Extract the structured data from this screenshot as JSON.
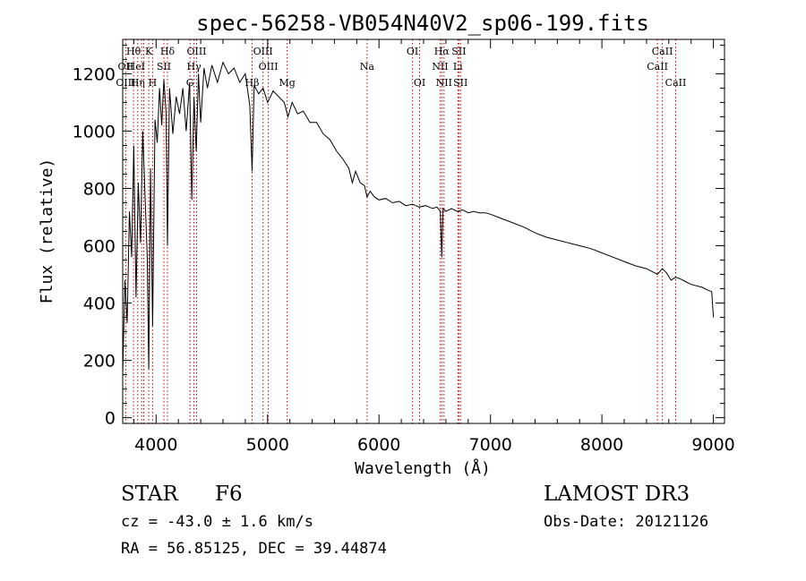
{
  "chart_data": {
    "type": "line",
    "title": "spec-56258-VB054N40V2_sp06-199.fits",
    "xlabel": "Wavelength (Å)",
    "ylabel": "Flux (relative)",
    "xlim": [
      3700,
      9100
    ],
    "ylim": [
      -20,
      1320
    ],
    "x_ticks": [
      4000,
      5000,
      6000,
      7000,
      8000,
      9000
    ],
    "y_ticks": [
      0,
      200,
      400,
      600,
      800,
      1000,
      1200
    ],
    "grid": false,
    "series": [
      {
        "name": "flux",
        "x": [
          3700,
          3720,
          3740,
          3760,
          3780,
          3800,
          3820,
          3840,
          3860,
          3880,
          3900,
          3920,
          3934,
          3950,
          3968,
          3990,
          4010,
          4030,
          4050,
          4070,
          4090,
          4102,
          4120,
          4150,
          4180,
          4210,
          4240,
          4270,
          4300,
          4320,
          4340,
          4360,
          4380,
          4400,
          4430,
          4460,
          4500,
          4550,
          4600,
          4650,
          4700,
          4750,
          4800,
          4840,
          4861,
          4880,
          4920,
          4960,
          5000,
          5050,
          5100,
          5150,
          5183,
          5220,
          5270,
          5320,
          5380,
          5440,
          5500,
          5560,
          5620,
          5680,
          5730,
          5760,
          5790,
          5830,
          5870,
          5893,
          5920,
          5960,
          6000,
          6060,
          6120,
          6180,
          6240,
          6300,
          6360,
          6420,
          6480,
          6520,
          6550,
          6563,
          6575,
          6600,
          6650,
          6700,
          6750,
          6800,
          6850,
          6900,
          6950,
          7000,
          7100,
          7200,
          7300,
          7400,
          7500,
          7600,
          7700,
          7800,
          7900,
          8000,
          8100,
          8200,
          8300,
          8400,
          8498,
          8542,
          8580,
          8620,
          8662,
          8700,
          8750,
          8800,
          8850,
          8900,
          8950,
          8985,
          9000
        ],
        "values": [
          150,
          480,
          330,
          720,
          560,
          950,
          420,
          820,
          610,
          1000,
          780,
          560,
          170,
          870,
          320,
          1040,
          960,
          1150,
          1020,
          1180,
          1060,
          600,
          1150,
          990,
          1120,
          1060,
          1150,
          1000,
          1170,
          760,
          1120,
          930,
          1200,
          1030,
          1220,
          1150,
          1230,
          1170,
          1240,
          1200,
          1220,
          1170,
          1200,
          1090,
          860,
          1160,
          1130,
          1150,
          1100,
          1140,
          1120,
          1100,
          1050,
          1100,
          1060,
          1070,
          1030,
          1030,
          990,
          970,
          930,
          900,
          870,
          820,
          860,
          820,
          810,
          770,
          790,
          770,
          760,
          765,
          750,
          755,
          740,
          745,
          735,
          740,
          730,
          735,
          720,
          560,
          730,
          720,
          730,
          720,
          725,
          715,
          720,
          715,
          715,
          710,
          695,
          680,
          665,
          645,
          630,
          620,
          610,
          600,
          590,
          575,
          560,
          545,
          530,
          520,
          500,
          520,
          505,
          480,
          490,
          485,
          475,
          465,
          460,
          455,
          445,
          440,
          350
        ]
      }
    ],
    "annotations": [
      {
        "label": "Hθ",
        "x": 3797,
        "row": 0
      },
      {
        "label": "OII",
        "x": 3727,
        "row": 1
      },
      {
        "label": "OIII",
        "x": 3727,
        "row": 2
      },
      {
        "label": "HeI",
        "x": 3820,
        "row": 1
      },
      {
        "label": "Hη",
        "x": 3835,
        "row": 2
      },
      {
        "label": "K",
        "x": 3934,
        "row": 0
      },
      {
        "label": "SII",
        "x": 4070,
        "row": 1
      },
      {
        "label": "H",
        "x": 3968,
        "row": 2
      },
      {
        "label": "Hδ",
        "x": 4102,
        "row": 0
      },
      {
        "label": "OIII",
        "x": 4363,
        "row": 0
      },
      {
        "label": "Hγ",
        "x": 4340,
        "row": 1
      },
      {
        "label": "G",
        "x": 4304,
        "row": 2
      },
      {
        "label": "OIII",
        "x": 4959,
        "row": 0
      },
      {
        "label": "OIII",
        "x": 5007,
        "row": 1
      },
      {
        "label": "Hβ",
        "x": 4861,
        "row": 2
      },
      {
        "label": "Mg",
        "x": 5175,
        "row": 2
      },
      {
        "label": "Na",
        "x": 5893,
        "row": 1
      },
      {
        "label": "OI",
        "x": 6300,
        "row": 0
      },
      {
        "label": "OI",
        "x": 6364,
        "row": 2
      },
      {
        "label": "Hα",
        "x": 6563,
        "row": 0
      },
      {
        "label": "SII",
        "x": 6717,
        "row": 0
      },
      {
        "label": "NII",
        "x": 6548,
        "row": 1
      },
      {
        "label": "Li",
        "x": 6708,
        "row": 1
      },
      {
        "label": "NII",
        "x": 6583,
        "row": 2
      },
      {
        "label": "SII",
        "x": 6731,
        "row": 2
      },
      {
        "label": "CaII",
        "x": 8542,
        "row": 0
      },
      {
        "label": "CaII",
        "x": 8498,
        "row": 1
      },
      {
        "label": "CaII",
        "x": 8662,
        "row": 2
      }
    ],
    "line_markers": [
      3727,
      3797,
      3835,
      3870,
      3889,
      3934,
      3968,
      4070,
      4102,
      4304,
      4340,
      4363,
      4861,
      4959,
      5007,
      5175,
      5893,
      6300,
      6364,
      6548,
      6563,
      6583,
      6708,
      6717,
      6731,
      8498,
      8542,
      8662
    ],
    "colors": {
      "axes": "#000000",
      "spectrum": "#000000",
      "line_markers": "#c00000"
    }
  },
  "info": {
    "object_class": "STAR",
    "subclass": "F6",
    "survey": "LAMOST DR3",
    "velocity": "cz = -43.0 ± 1.6 km/s",
    "obs_date": "Obs-Date: 20121126",
    "coords": "RA =  56.85125, DEC =  39.44874"
  }
}
